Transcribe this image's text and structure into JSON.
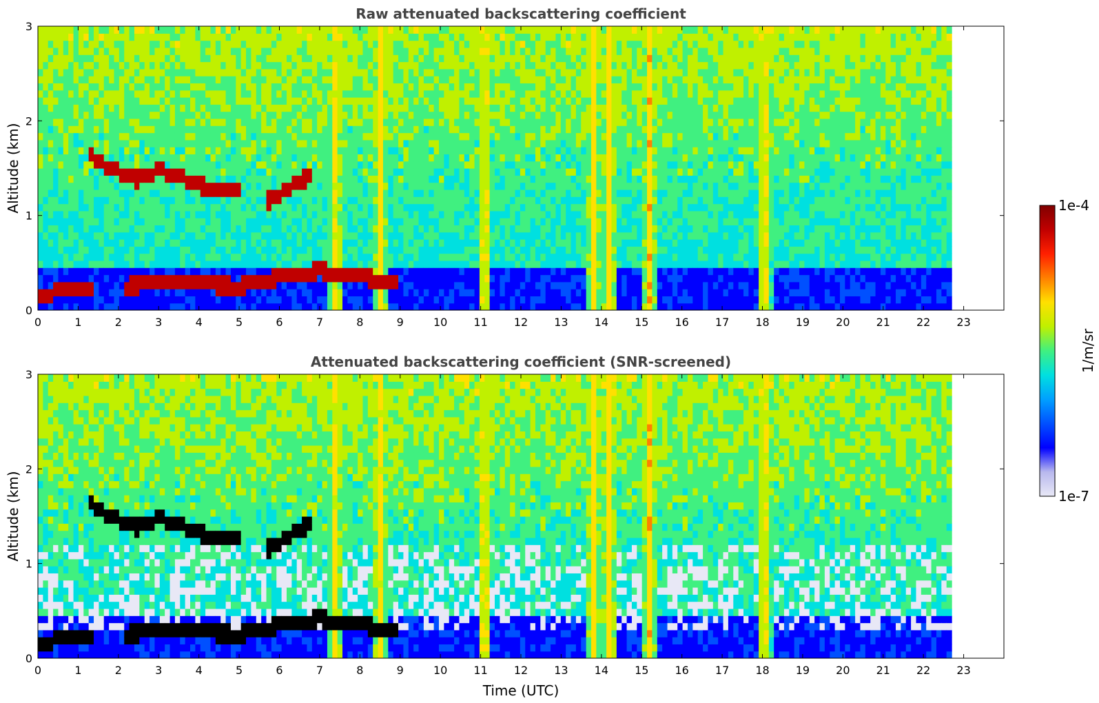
{
  "figure": {
    "x_axis_label": "Time (UTC)",
    "colorbar": {
      "label": "1/m/sr",
      "max_label": "1e-4",
      "min_label": "1e-7",
      "scale": "log",
      "range": [
        1e-07,
        0.0001
      ],
      "colormap": [
        "#e8e8f6",
        "#b8b8ee",
        "#0000ff",
        "#0050ff",
        "#00a0ff",
        "#00e0e0",
        "#40f080",
        "#c0f000",
        "#ffe000",
        "#ff8000",
        "#ff2000",
        "#c00000",
        "#800000"
      ]
    }
  },
  "chart_data": [
    {
      "type": "heatmap",
      "title": "Raw attenuated backscattering coefficient",
      "xlabel": "",
      "ylabel": "Altitude (km)",
      "xlim": [
        0,
        24
      ],
      "ylim": [
        0,
        3
      ],
      "x_ticks": [
        0,
        1,
        2,
        3,
        4,
        5,
        6,
        7,
        8,
        9,
        10,
        11,
        12,
        13,
        14,
        15,
        16,
        17,
        18,
        19,
        20,
        21,
        22,
        23
      ],
      "y_ticks": [
        0,
        1,
        2,
        3
      ],
      "data_end_time": 22.7,
      "cloud_layers": [
        {
          "t": [
            0.0,
            0.5,
            1.0,
            1.4
          ],
          "alt": [
            0.15,
            0.2,
            0.22,
            0.25
          ]
        },
        {
          "t": [
            1.3,
            1.8,
            2.4,
            3.0,
            3.5,
            4.0,
            4.5,
            5.1
          ],
          "alt": [
            1.65,
            1.5,
            1.38,
            1.48,
            1.42,
            1.32,
            1.28,
            1.24
          ]
        },
        {
          "t": [
            5.7,
            6.0,
            6.4,
            6.8
          ],
          "alt": [
            1.15,
            1.22,
            1.35,
            1.42
          ]
        },
        {
          "t": [
            2.2,
            3.0,
            4.0,
            5.0,
            6.0,
            7.0,
            8.0,
            9.0
          ],
          "alt": [
            0.25,
            0.3,
            0.28,
            0.25,
            0.35,
            0.42,
            0.35,
            0.3
          ]
        }
      ],
      "vertical_plumes_hours": [
        7.4,
        8.5,
        11.1,
        13.8,
        14.2,
        15.2,
        18.05
      ]
    },
    {
      "type": "heatmap",
      "title": "Attenuated backscattering coefficient (SNR-screened)",
      "xlabel": "Time (UTC)",
      "ylabel": "Altitude (km)",
      "xlim": [
        0,
        24
      ],
      "ylim": [
        0,
        3
      ],
      "x_ticks": [
        0,
        1,
        2,
        3,
        4,
        5,
        6,
        7,
        8,
        9,
        10,
        11,
        12,
        13,
        14,
        15,
        16,
        17,
        18,
        19,
        20,
        21,
        22,
        23
      ],
      "y_ticks": [
        0,
        1,
        2,
        3
      ],
      "data_end_time": 22.7,
      "cloud_layers": [
        {
          "t": [
            0.0,
            0.5,
            1.0,
            1.4
          ],
          "alt": [
            0.15,
            0.2,
            0.22,
            0.25
          ]
        },
        {
          "t": [
            1.3,
            1.8,
            2.4,
            3.0,
            3.5,
            4.0,
            4.5,
            5.1
          ],
          "alt": [
            1.65,
            1.5,
            1.38,
            1.48,
            1.42,
            1.32,
            1.28,
            1.24
          ]
        },
        {
          "t": [
            5.7,
            6.0,
            6.4,
            6.8
          ],
          "alt": [
            1.15,
            1.22,
            1.35,
            1.42
          ]
        },
        {
          "t": [
            2.2,
            3.0,
            4.0,
            5.0,
            6.0,
            7.0,
            8.0,
            9.0
          ],
          "alt": [
            0.25,
            0.3,
            0.28,
            0.25,
            0.35,
            0.42,
            0.35,
            0.3
          ]
        }
      ],
      "vertical_plumes_hours": [
        7.4,
        8.5,
        11.1,
        13.8,
        14.2,
        15.2,
        18.05
      ]
    }
  ]
}
